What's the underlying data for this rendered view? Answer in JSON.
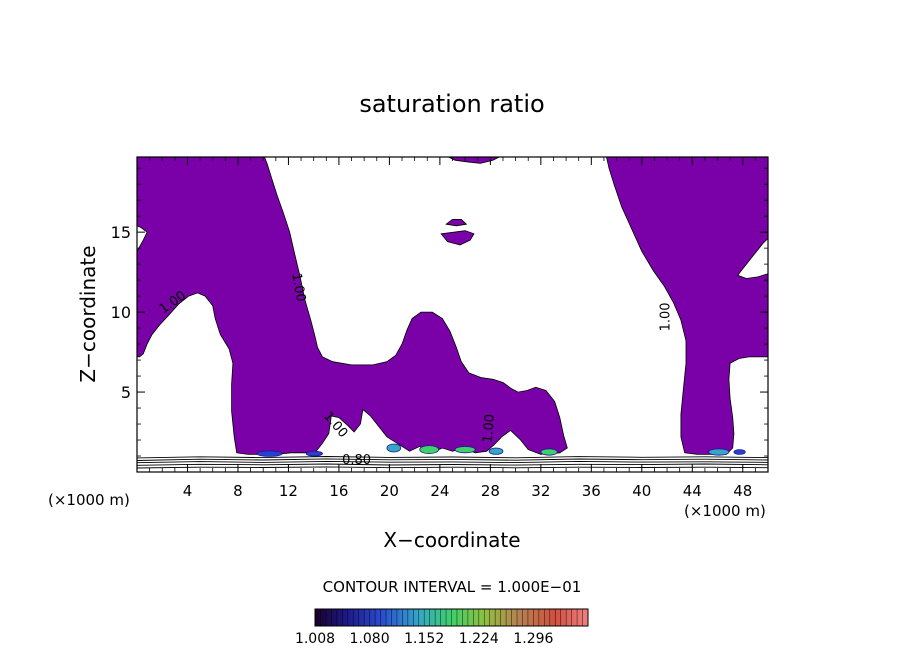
{
  "chart_data": {
    "type": "contour",
    "title": "saturation ratio",
    "xlabel": "X−coordinate",
    "ylabel": "Z−coordinate",
    "x_unit_left": "(×1000 m)",
    "x_unit_right": "(×1000 m)",
    "xlim": [
      0,
      50
    ],
    "ylim": [
      0,
      19.7
    ],
    "x_ticks": [
      "4",
      "8",
      "12",
      "16",
      "20",
      "24",
      "28",
      "32",
      "36",
      "40",
      "44",
      "48"
    ],
    "y_ticks": [
      "5",
      "10",
      "15"
    ],
    "contour_labels": [
      {
        "text": "1.00",
        "x": 3.0,
        "y": 10.4,
        "angle": -35
      },
      {
        "text": "1.00",
        "x": 12.5,
        "y": 11.5,
        "angle": 80
      },
      {
        "text": "1.00",
        "x": 15.5,
        "y": 2.8,
        "angle": 50
      },
      {
        "text": "1.00",
        "x": 28.2,
        "y": 2.7,
        "angle": -85
      },
      {
        "text": "1.00",
        "x": 42.2,
        "y": 9.7,
        "angle": -90
      },
      {
        "text": "0.80",
        "x": 17.4,
        "y": 0.5,
        "angle": 0
      }
    ],
    "contour_interval_label": "CONTOUR INTERVAL = 1.000E−01",
    "colorbar": {
      "min": 1.008,
      "max": 1.368,
      "tick_labels": [
        "1.008",
        "1.080",
        "1.152",
        "1.224",
        "1.296"
      ],
      "tick_values": [
        1.008,
        1.08,
        1.152,
        1.224,
        1.296
      ]
    },
    "colors": {
      "supersaturated_fill": "#7a00a8",
      "frame": "#000000",
      "background": "#ffffff"
    },
    "supersaturated_regions": [
      {
        "name": "left-plume",
        "points": [
          [
            0,
            19.7
          ],
          [
            10.1,
            19.7
          ],
          [
            10.3,
            19.3
          ],
          [
            10.7,
            18.3
          ],
          [
            11.1,
            17.3
          ],
          [
            11.6,
            16.2
          ],
          [
            12.1,
            15.0
          ],
          [
            12.5,
            13.6
          ],
          [
            12.9,
            12.3
          ],
          [
            13.3,
            10.8
          ],
          [
            13.8,
            9.4
          ],
          [
            14.1,
            8.5
          ],
          [
            14.3,
            7.8
          ],
          [
            14.7,
            7.2
          ],
          [
            15.5,
            6.9
          ],
          [
            17.0,
            6.7
          ],
          [
            18.7,
            6.7
          ],
          [
            19.8,
            6.9
          ],
          [
            20.5,
            7.3
          ],
          [
            21.0,
            8.0
          ],
          [
            21.4,
            8.9
          ],
          [
            21.8,
            9.6
          ],
          [
            22.5,
            10.0
          ],
          [
            23.4,
            10.0
          ],
          [
            24.2,
            9.6
          ],
          [
            24.8,
            8.8
          ],
          [
            25.3,
            7.8
          ],
          [
            25.7,
            6.9
          ],
          [
            26.3,
            6.2
          ],
          [
            27.3,
            5.9
          ],
          [
            28.2,
            5.8
          ],
          [
            29.0,
            5.6
          ],
          [
            29.7,
            5.2
          ],
          [
            30.2,
            5.0
          ],
          [
            30.9,
            5.1
          ],
          [
            31.6,
            5.3
          ],
          [
            32.4,
            5.1
          ],
          [
            33.1,
            4.4
          ],
          [
            33.5,
            3.4
          ],
          [
            33.8,
            2.3
          ],
          [
            34.1,
            1.5
          ],
          [
            33.5,
            1.2
          ],
          [
            32.0,
            1.1
          ],
          [
            31.0,
            1.4
          ],
          [
            30.4,
            2.0
          ],
          [
            29.6,
            2.6
          ],
          [
            28.9,
            2.2
          ],
          [
            28.3,
            1.7
          ],
          [
            27.7,
            1.3
          ],
          [
            26.8,
            1.2
          ],
          [
            25.9,
            1.5
          ],
          [
            25.0,
            1.3
          ],
          [
            24.2,
            1.5
          ],
          [
            23.3,
            1.2
          ],
          [
            22.4,
            1.6
          ],
          [
            21.6,
            1.3
          ],
          [
            20.8,
            1.7
          ],
          [
            19.8,
            2.2
          ],
          [
            19.0,
            3.0
          ],
          [
            18.5,
            3.5
          ],
          [
            17.9,
            3.9
          ],
          [
            17.7,
            3.0
          ],
          [
            17.2,
            2.5
          ],
          [
            16.7,
            2.9
          ],
          [
            16.0,
            3.4
          ],
          [
            15.4,
            3.5
          ],
          [
            15.2,
            2.4
          ],
          [
            14.7,
            1.8
          ],
          [
            14.2,
            1.3
          ],
          [
            13.3,
            1.2
          ],
          [
            12.2,
            1.2
          ],
          [
            11.0,
            1.1
          ],
          [
            9.9,
            1.1
          ],
          [
            8.8,
            1.1
          ],
          [
            7.9,
            1.2
          ],
          [
            7.7,
            2.2
          ],
          [
            7.5,
            3.8
          ],
          [
            7.5,
            5.5
          ],
          [
            7.6,
            6.8
          ],
          [
            7.3,
            7.7
          ],
          [
            6.6,
            8.6
          ],
          [
            6.2,
            9.6
          ],
          [
            6.0,
            10.4
          ],
          [
            5.4,
            11.0
          ],
          [
            4.8,
            11.2
          ],
          [
            4.1,
            11.0
          ],
          [
            3.3,
            10.5
          ],
          [
            2.5,
            9.8
          ],
          [
            1.8,
            9.2
          ],
          [
            1.2,
            8.6
          ],
          [
            0.8,
            8.0
          ],
          [
            0.5,
            7.4
          ],
          [
            0.2,
            7.2
          ],
          [
            0,
            7.2
          ]
        ]
      },
      {
        "name": "right-plume",
        "points": [
          [
            37.2,
            19.7
          ],
          [
            50,
            19.7
          ],
          [
            50,
            7.2
          ],
          [
            49.3,
            7.2
          ],
          [
            48.5,
            7.2
          ],
          [
            47.7,
            7.1
          ],
          [
            47.0,
            6.8
          ],
          [
            46.9,
            5.8
          ],
          [
            47.0,
            4.6
          ],
          [
            47.2,
            3.4
          ],
          [
            47.3,
            2.4
          ],
          [
            47.2,
            1.5
          ],
          [
            46.7,
            1.1
          ],
          [
            45.6,
            1.1
          ],
          [
            44.4,
            1.1
          ],
          [
            43.4,
            1.2
          ],
          [
            43.1,
            2.2
          ],
          [
            43.1,
            3.6
          ],
          [
            43.3,
            5.2
          ],
          [
            43.5,
            6.8
          ],
          [
            43.5,
            8.2
          ],
          [
            43.1,
            9.5
          ],
          [
            42.5,
            10.6
          ],
          [
            41.8,
            11.6
          ],
          [
            40.9,
            12.6
          ],
          [
            40.0,
            13.8
          ],
          [
            39.2,
            15.2
          ],
          [
            38.4,
            16.6
          ],
          [
            37.8,
            18.0
          ],
          [
            37.4,
            19.0
          ]
        ]
      },
      {
        "name": "top-bump",
        "points": [
          [
            24.7,
            19.7
          ],
          [
            28.7,
            19.7
          ],
          [
            28.2,
            19.5
          ],
          [
            27.2,
            19.3
          ],
          [
            26.1,
            19.4
          ],
          [
            25.2,
            19.5
          ]
        ]
      },
      {
        "name": "small-blob",
        "points": [
          [
            24.1,
            14.9
          ],
          [
            24.6,
            14.4
          ],
          [
            25.6,
            14.2
          ],
          [
            26.4,
            14.5
          ],
          [
            26.7,
            14.9
          ],
          [
            26.0,
            15.1
          ],
          [
            25.1,
            15.0
          ]
        ]
      },
      {
        "name": "small-blob-top",
        "points": [
          [
            24.5,
            15.5
          ],
          [
            25.0,
            15.8
          ],
          [
            25.7,
            15.8
          ],
          [
            26.1,
            15.5
          ],
          [
            25.3,
            15.4
          ]
        ]
      }
    ],
    "clear_holes": [
      {
        "name": "right-hole",
        "points": [
          [
            47.6,
            12.3
          ],
          [
            48.6,
            13.3
          ],
          [
            49.6,
            14.3
          ],
          [
            50,
            14.6
          ],
          [
            50,
            12.4
          ],
          [
            49.2,
            12.2
          ],
          [
            48.3,
            12.1
          ]
        ]
      },
      {
        "name": "left-notch",
        "points": [
          [
            0,
            13.8
          ],
          [
            0.5,
            14.5
          ],
          [
            0.8,
            15.0
          ],
          [
            0.3,
            15.3
          ],
          [
            0,
            15.4
          ]
        ]
      }
    ],
    "high_ratio_spots": [
      {
        "x": 9.5,
        "y": 1.15,
        "w": 2.0,
        "h": 0.35,
        "level": 1.05
      },
      {
        "x": 13.4,
        "y": 1.15,
        "w": 1.3,
        "h": 0.3,
        "level": 1.04
      },
      {
        "x": 19.8,
        "y": 1.5,
        "w": 1.1,
        "h": 0.5,
        "level": 1.11
      },
      {
        "x": 22.4,
        "y": 1.4,
        "w": 1.5,
        "h": 0.5,
        "level": 1.16
      },
      {
        "x": 25.2,
        "y": 1.4,
        "w": 1.6,
        "h": 0.4,
        "level": 1.12
      },
      {
        "x": 27.9,
        "y": 1.3,
        "w": 1.1,
        "h": 0.4,
        "level": 1.09
      },
      {
        "x": 32.0,
        "y": 1.25,
        "w": 1.3,
        "h": 0.4,
        "level": 1.14
      },
      {
        "x": 45.3,
        "y": 1.25,
        "w": 1.6,
        "h": 0.4,
        "level": 1.1
      },
      {
        "x": 47.3,
        "y": 1.25,
        "w": 0.9,
        "h": 0.3,
        "level": 1.05
      }
    ],
    "low_level_contours": {
      "description_free_note": "",
      "lines": [
        {
          "y": [
            0.25,
            0.3,
            0.28,
            0.32,
            0.27,
            0.3,
            0.26,
            0.3,
            0.28,
            0.3,
            0.27
          ]
        },
        {
          "y": [
            0.42,
            0.48,
            0.45,
            0.5,
            0.44,
            0.47,
            0.43,
            0.48,
            0.46,
            0.5,
            0.45
          ]
        },
        {
          "y": [
            0.58,
            0.65,
            0.6,
            0.66,
            0.61,
            0.63,
            0.59,
            0.66,
            0.62,
            0.64,
            0.6
          ]
        },
        {
          "y": [
            0.72,
            0.8,
            0.75,
            0.82,
            0.76,
            0.79,
            0.74,
            0.81,
            0.77,
            0.8,
            0.75
          ]
        },
        {
          "y": [
            0.88,
            0.95,
            0.9,
            0.97,
            0.91,
            0.94,
            0.89,
            0.96,
            0.92,
            0.95,
            0.9
          ]
        }
      ]
    }
  }
}
